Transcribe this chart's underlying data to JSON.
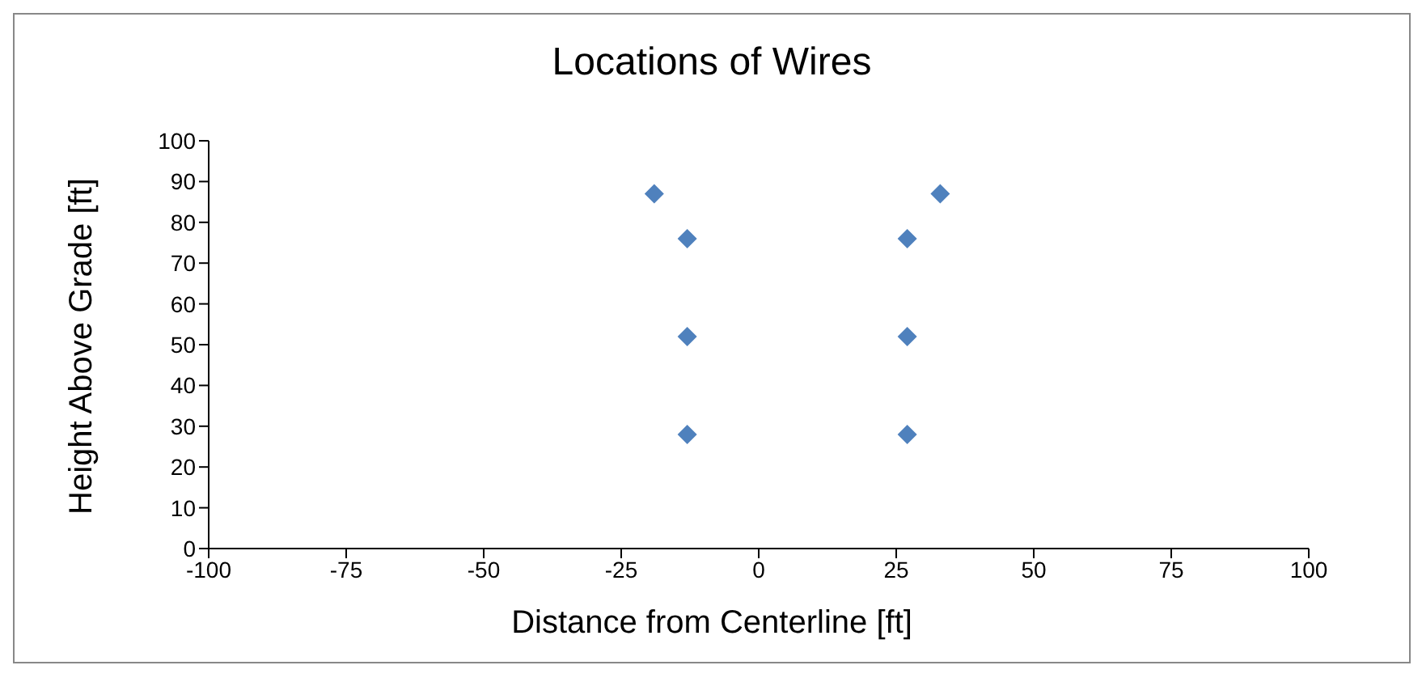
{
  "chart_data": {
    "type": "scatter",
    "title": "Locations of Wires",
    "xlabel": "Distance from Centerline [ft]",
    "ylabel": "Height Above Grade [ft]",
    "x": [
      -19,
      -13,
      -13,
      -13,
      27,
      27,
      27,
      33
    ],
    "values": [
      87,
      76,
      52,
      28,
      76,
      52,
      28,
      87
    ],
    "color": "#4f81bd",
    "marker": "diamond",
    "grid": false,
    "legend": false,
    "xlim": [
      -100,
      100
    ],
    "xticks": [
      -100,
      -75,
      -50,
      -25,
      0,
      25,
      50,
      75,
      100
    ],
    "ylim": [
      0,
      100
    ],
    "yticks": [
      0,
      10,
      20,
      30,
      40,
      50,
      60,
      70,
      80,
      90,
      100
    ]
  }
}
